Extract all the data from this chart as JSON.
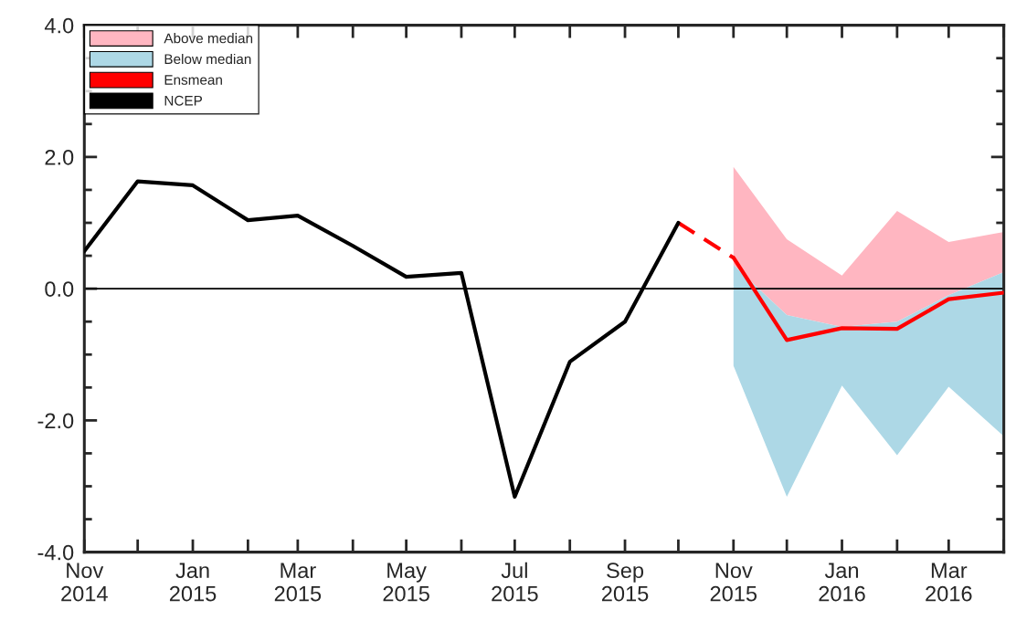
{
  "chart_data": {
    "type": "line",
    "series": [
      {
        "name": "Above median",
        "color": "#ffb6c1",
        "x": [
          "2015-11",
          "2015-12",
          "2016-01",
          "2016-02",
          "2016-03",
          "2016-04"
        ],
        "values": [
          null,
          null,
          null,
          null,
          null,
          null
        ],
        "lower": [
          0.36,
          -0.4,
          -0.58,
          -0.5,
          -0.1,
          0.25
        ],
        "upper": [
          1.85,
          0.75,
          0.2,
          1.18,
          0.71,
          0.86
        ]
      },
      {
        "name": "Below median",
        "color": "#add8e6",
        "x": [
          "2015-11",
          "2015-12",
          "2016-01",
          "2016-02",
          "2016-03",
          "2016-04"
        ],
        "values": [
          null,
          null,
          null,
          null,
          null,
          null
        ],
        "lower": [
          -1.17,
          -3.16,
          -1.47,
          -2.53,
          -1.49,
          -2.24
        ],
        "upper": [
          0.36,
          -0.4,
          -0.58,
          -0.5,
          -0.1,
          0.25
        ]
      },
      {
        "name": "Ensmean",
        "color": "#ff0000",
        "x": [
          "2015-11",
          "2015-12",
          "2016-01",
          "2016-02",
          "2016-03",
          "2016-04"
        ],
        "values": [
          0.47,
          -0.78,
          -0.6,
          -0.61,
          -0.16,
          -0.06
        ],
        "line_style": "solid"
      },
      {
        "color": "#ff0000",
        "x": [
          "2015-10",
          "2015-11"
        ],
        "values": [
          1.0,
          0.47
        ],
        "line_style": "dashed"
      },
      {
        "name": "NCEP",
        "color": "#000000",
        "x": [
          "2014-11",
          "2014-12",
          "2015-01",
          "2015-02",
          "2015-03",
          "2015-04",
          "2015-05",
          "2015-06",
          "2015-07",
          "2015-08",
          "2015-09",
          "2015-10"
        ],
        "values": [
          0.57,
          1.63,
          1.57,
          1.04,
          1.11,
          0.65,
          0.18,
          0.24,
          -3.16,
          -1.11,
          -0.5,
          1.0
        ],
        "line_style": "solid"
      }
    ],
    "xlim": [
      "2014-11",
      "2016-04"
    ],
    "xticks": [
      {
        "value": "2014-11",
        "label": "Nov\n2014"
      },
      {
        "value": "2014-12",
        "label": null
      },
      {
        "value": "2015-01",
        "label": "Jan\n2015"
      },
      {
        "value": "2015-02",
        "label": null
      },
      {
        "value": "2015-03",
        "label": "Mar\n2015"
      },
      {
        "value": "2015-04",
        "label": null
      },
      {
        "value": "2015-05",
        "label": "May\n2015"
      },
      {
        "value": "2015-06",
        "label": null
      },
      {
        "value": "2015-07",
        "label": "Jul\n2015"
      },
      {
        "value": "2015-08",
        "label": null
      },
      {
        "value": "2015-09",
        "label": "Sep\n2015"
      },
      {
        "value": "2015-10",
        "label": null
      },
      {
        "value": "2015-11",
        "label": "Nov\n2015"
      },
      {
        "value": "2015-12",
        "label": null
      },
      {
        "value": "2016-01",
        "label": "Jan\n2016"
      },
      {
        "value": "2016-02",
        "label": null
      },
      {
        "value": "2016-03",
        "label": "Mar\n2016"
      },
      {
        "value": "2016-04",
        "label": null
      }
    ],
    "ylim": [
      -4.0,
      4.0
    ],
    "yticks": [
      {
        "value": -4.0,
        "label": "-4.0"
      },
      {
        "value": -3.5,
        "label": null
      },
      {
        "value": -3.0,
        "label": null
      },
      {
        "value": -2.5,
        "label": null
      },
      {
        "value": -2.0,
        "label": "-2.0"
      },
      {
        "value": -1.5,
        "label": null
      },
      {
        "value": -1.0,
        "label": null
      },
      {
        "value": -0.5,
        "label": null
      },
      {
        "value": 0.0,
        "label": "0.0"
      },
      {
        "value": 0.5,
        "label": null
      },
      {
        "value": 1.0,
        "label": null
      },
      {
        "value": 1.5,
        "label": null
      },
      {
        "value": 2.0,
        "label": "2.0"
      },
      {
        "value": 2.5,
        "label": null
      },
      {
        "value": 3.0,
        "label": null
      },
      {
        "value": 3.5,
        "label": null
      },
      {
        "value": 4.0,
        "label": "4.0"
      }
    ],
    "ref_lines": [
      {
        "axis": "y",
        "value": 0.0,
        "color": "#000000",
        "line_style": "solid"
      }
    ],
    "grid": false,
    "legend": "top left",
    "marker": "none"
  }
}
